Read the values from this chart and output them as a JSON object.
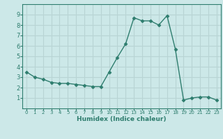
{
  "x": [
    0,
    1,
    2,
    3,
    4,
    5,
    6,
    7,
    8,
    9,
    10,
    11,
    12,
    13,
    14,
    15,
    16,
    17,
    18,
    19,
    20,
    21,
    22,
    23
  ],
  "y": [
    3.5,
    3.0,
    2.8,
    2.5,
    2.4,
    2.4,
    2.3,
    2.2,
    2.1,
    2.1,
    3.5,
    4.9,
    6.2,
    8.7,
    8.4,
    8.4,
    8.0,
    8.9,
    5.7,
    0.8,
    1.0,
    1.1,
    1.1,
    0.8
  ],
  "xlim": [
    -0.5,
    23.5
  ],
  "ylim": [
    0,
    10
  ],
  "yticks": [
    1,
    2,
    3,
    4,
    5,
    6,
    7,
    8,
    9
  ],
  "xticks": [
    0,
    1,
    2,
    3,
    4,
    5,
    6,
    7,
    8,
    9,
    10,
    11,
    12,
    13,
    14,
    15,
    16,
    17,
    18,
    19,
    20,
    21,
    22,
    23
  ],
  "xlabel": "Humidex (Indice chaleur)",
  "line_color": "#2e7d6e",
  "marker": "D",
  "marker_size": 2.5,
  "bg_color": "#cce8e8",
  "grid_color": "#b8d4d4",
  "title": ""
}
